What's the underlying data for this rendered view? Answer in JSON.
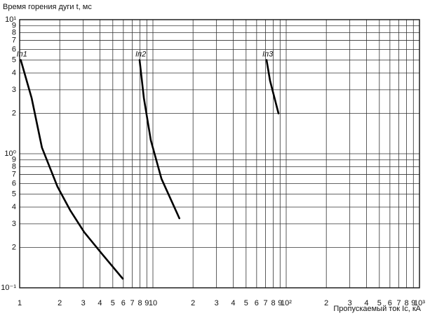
{
  "chart_data": {
    "type": "line",
    "y_label": "Время горения дуги t, мс",
    "x_label": "Пропускаемый ток Iс, кА",
    "log_x": true,
    "log_y": true,
    "grid": true,
    "xlim": [
      1,
      1000
    ],
    "ylim": [
      0.1,
      10
    ],
    "xticks": [
      1,
      2,
      3,
      4,
      5,
      6,
      7,
      8,
      9,
      10,
      {
        "value": 20,
        "label": "2"
      },
      {
        "value": 30,
        "label": "3"
      },
      {
        "value": 40,
        "label": "4"
      },
      {
        "value": 50,
        "label": "5"
      },
      {
        "value": 60,
        "label": "6"
      },
      {
        "value": 70,
        "label": "7"
      },
      {
        "value": 80,
        "label": "8"
      },
      {
        "value": 90,
        "label": "9"
      },
      {
        "value": 100,
        "label": "10²"
      },
      {
        "value": 200,
        "label": "2"
      },
      {
        "value": 300,
        "label": "3"
      },
      {
        "value": 400,
        "label": "4"
      },
      {
        "value": 500,
        "label": "5"
      },
      {
        "value": 600,
        "label": "6"
      },
      {
        "value": 700,
        "label": "7"
      },
      {
        "value": 800,
        "label": "8"
      },
      {
        "value": 900,
        "label": "9"
      },
      {
        "value": 1000,
        "label": "10³"
      }
    ],
    "yticks": [
      {
        "value": 0.1,
        "label": "10⁻¹"
      },
      {
        "value": 0.2,
        "label": "2"
      },
      {
        "value": 0.3,
        "label": "3"
      },
      {
        "value": 0.4,
        "label": "4"
      },
      {
        "value": 0.5,
        "label": "5"
      },
      {
        "value": 0.6,
        "label": "6"
      },
      {
        "value": 0.7,
        "label": "7"
      },
      {
        "value": 0.8,
        "label": "8"
      },
      {
        "value": 0.9,
        "label": "9"
      },
      {
        "value": 1,
        "label": "10⁰"
      },
      2,
      3,
      4,
      5,
      6,
      7,
      8,
      9,
      {
        "value": 10,
        "label": "10¹"
      }
    ],
    "series": [
      {
        "name": "Iп1",
        "color": "#000000",
        "x": [
          1.02,
          1.23,
          1.47,
          1.92,
          2.39,
          3.05,
          4.13,
          5.94
        ],
        "values": [
          5.0,
          2.6,
          1.11,
          0.57,
          0.38,
          0.26,
          0.18,
          0.117
        ]
      },
      {
        "name": "Iп2",
        "color": "#000000",
        "x": [
          7.94,
          8.55,
          9.64,
          11.6,
          15.8
        ],
        "values": [
          5.0,
          2.6,
          1.26,
          0.65,
          0.33
        ]
      },
      {
        "name": "Iп3",
        "color": "#000000",
        "x": [
          71.2,
          75.7,
          87.5
        ],
        "values": [
          5.0,
          3.5,
          2.0
        ]
      }
    ]
  }
}
